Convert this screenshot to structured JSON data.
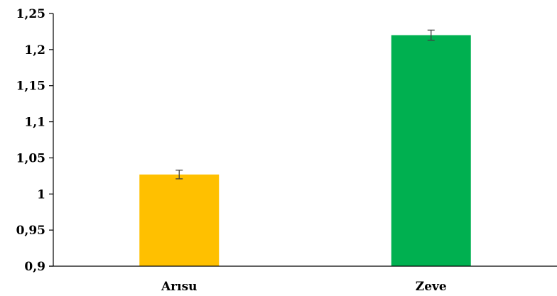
{
  "chart_data": {
    "type": "bar",
    "categories": [
      "Arısu",
      "Zeve"
    ],
    "values": [
      1.027,
      1.22
    ],
    "error": [
      0.006,
      0.007
    ],
    "colors": [
      "#FFC000",
      "#00B050"
    ],
    "error_color": "#404040",
    "axis_color": "#000000",
    "ylim": [
      0.9,
      1.25
    ],
    "yticks": [
      "0,9",
      "0,95",
      "1",
      "1,05",
      "1,1",
      "1,15",
      "1,2",
      "1,25"
    ],
    "ytick_values": [
      0.9,
      0.95,
      1.0,
      1.05,
      1.1,
      1.15,
      1.2,
      1.25
    ],
    "grid": false,
    "legend": "none",
    "title": "",
    "xlabel": "",
    "ylabel": ""
  }
}
